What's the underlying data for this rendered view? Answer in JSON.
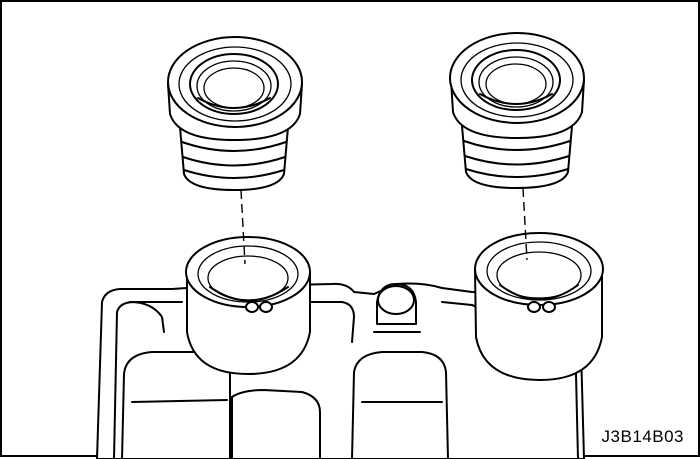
{
  "figure": {
    "reference_code": "J3B14B03"
  },
  "colors": {
    "line": "#000000",
    "background": "#ffffff"
  }
}
